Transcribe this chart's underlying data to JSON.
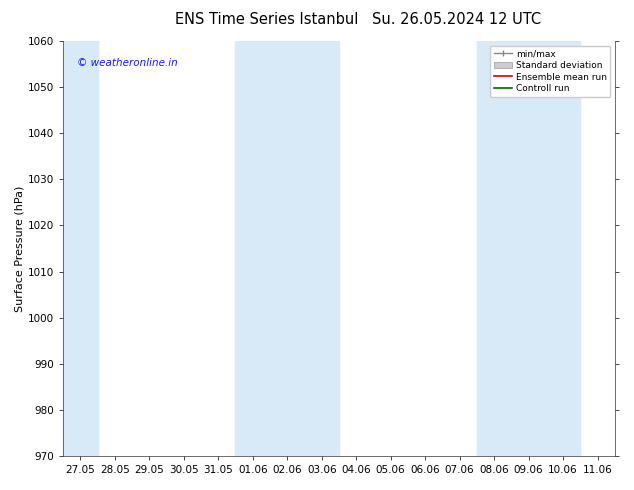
{
  "title": "ENS Time Series Istanbul",
  "title2": "Su. 26.05.2024 12 UTC",
  "ylabel": "Surface Pressure (hPa)",
  "ylim": [
    970,
    1060
  ],
  "yticks": [
    970,
    980,
    990,
    1000,
    1010,
    1020,
    1030,
    1040,
    1050,
    1060
  ],
  "xlabels": [
    "27.05",
    "28.05",
    "29.05",
    "30.05",
    "31.05",
    "01.06",
    "02.06",
    "03.06",
    "04.06",
    "05.06",
    "06.06",
    "07.06",
    "08.06",
    "09.06",
    "10.06",
    "11.06"
  ],
  "background_color": "#ffffff",
  "shaded_color": "#d8eaf8",
  "watermark": "© weatheronline.in",
  "legend_labels": [
    "min/max",
    "Standard deviation",
    "Ensemble mean run",
    "Controll run"
  ],
  "title_fontsize": 10.5,
  "axis_label_fontsize": 8,
  "tick_fontsize": 7.5,
  "band_ranges": [
    [
      -0.5,
      0.5
    ],
    [
      5.0,
      7.0
    ],
    [
      12.5,
      14.5
    ]
  ]
}
